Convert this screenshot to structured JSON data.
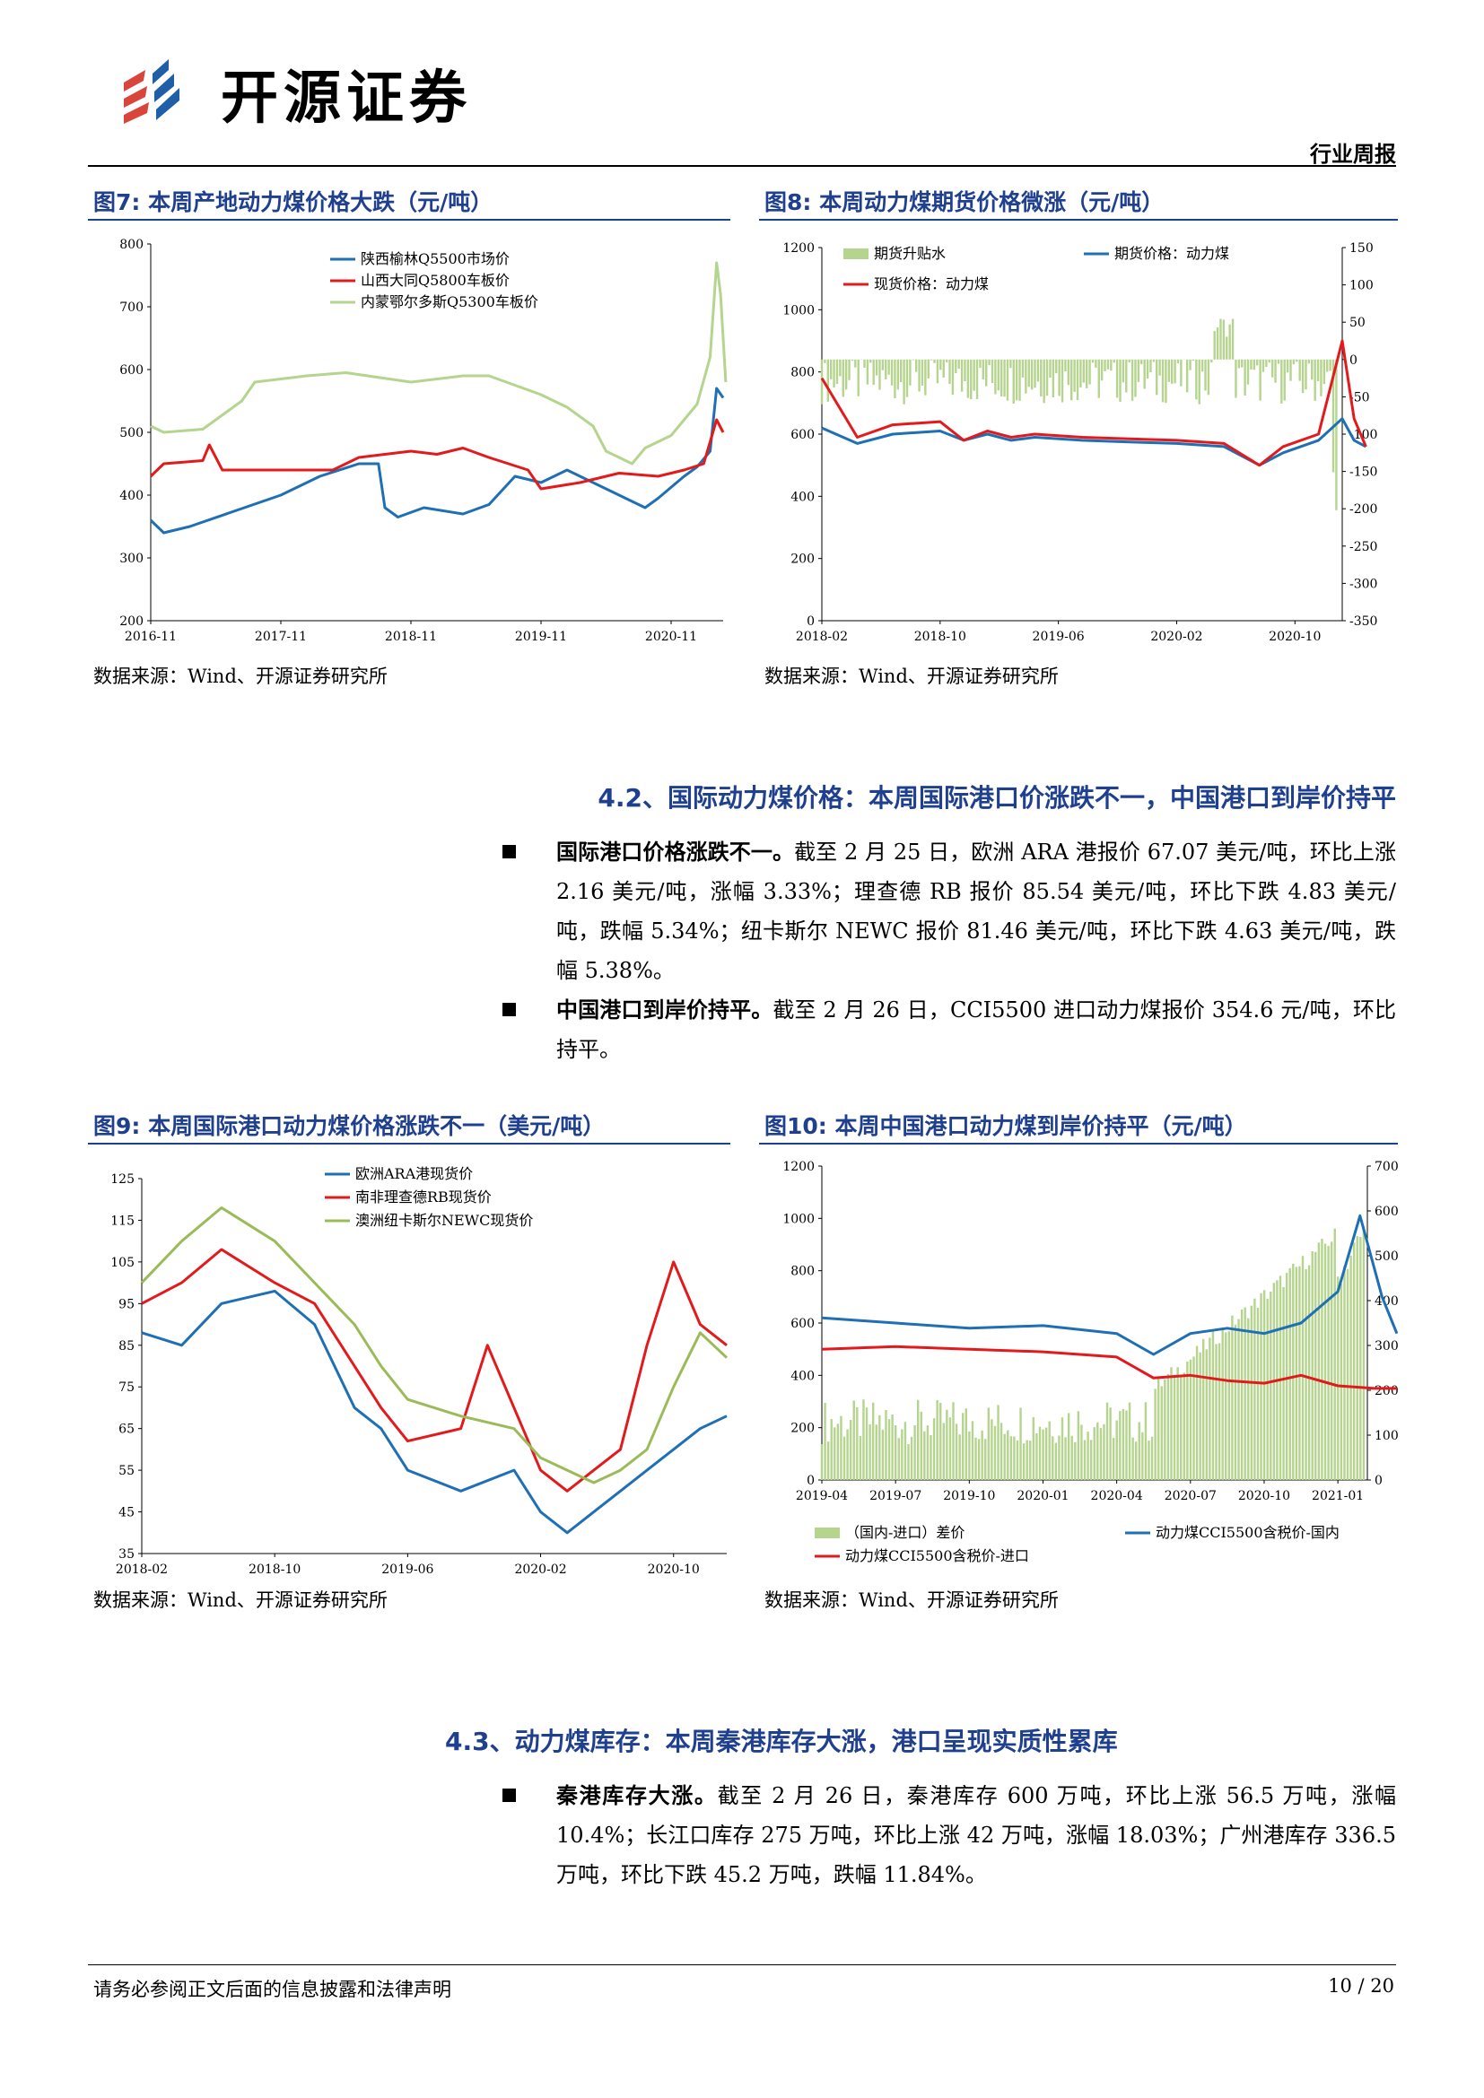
{
  "header": {
    "logo_text": "开源证券",
    "report_type": "行业周报"
  },
  "figures": [
    {
      "id": "fig7",
      "title": "图7: 本周产地动力煤价格大跌（元/吨）",
      "source": "数据来源：Wind、开源证券研究所"
    },
    {
      "id": "fig8",
      "title": "图8: 本周动力煤期货价格微涨（元/吨）",
      "source": "数据来源：Wind、开源证券研究所"
    },
    {
      "id": "fig9",
      "title": "图9: 本周国际港口动力煤价格涨跌不一（美元/吨）",
      "source": "数据来源：Wind、开源证券研究所"
    },
    {
      "id": "fig10",
      "title": "图10: 本周中国港口动力煤到岸价持平（元/吨）",
      "source": "数据来源：Wind、开源证券研究所"
    }
  ],
  "sections": [
    {
      "title": "4.2、国际动力煤价格：本周国际港口价涨跌不一，中国港口到岸价持平",
      "bullets": [
        {
          "bold": "国际港口价格涨跌不一。",
          "text": "截至 2 月 25 日，欧洲 ARA 港报价 67.07 美元/吨，环比上涨 2.16 美元/吨，涨幅 3.33%；理查德 RB 报价 85.54 美元/吨，环比下跌 4.83 美元/吨，跌幅 5.34%；纽卡斯尔 NEWC 报价 81.46 美元/吨，环比下跌 4.63 美元/吨，跌幅 5.38%。"
        },
        {
          "bold": "中国港口到岸价持平。",
          "text": "截至 2 月 26 日，CCI5500 进口动力煤报价 354.6 元/吨，环比持平。"
        }
      ]
    },
    {
      "title": "4.3、动力煤库存：本周秦港库存大涨，港口呈现实质性累库",
      "bullets": [
        {
          "bold": "秦港库存大涨。",
          "text": "截至 2 月 26 日，秦港库存 600 万吨，环比上涨 56.5 万吨，涨幅 10.4%；长江口库存 275 万吨，环比上涨 42 万吨，涨幅 18.03%；广州港库存 336.5 万吨，环比下跌 45.2 万吨，跌幅 11.84%。"
        }
      ]
    }
  ],
  "footer": {
    "disclaimer": "请务必参阅正文后面的信息披露和法律声明",
    "page": "10 / 20"
  },
  "chart_data": [
    {
      "id": "fig7",
      "type": "line",
      "x_ticks": [
        "2016-11",
        "2017-11",
        "2018-11",
        "2019-11",
        "2020-11"
      ],
      "ylim": [
        200,
        800
      ],
      "y_ticks": [
        200,
        300,
        400,
        500,
        600,
        700,
        800
      ],
      "series": [
        {
          "name": "陕西榆林Q5500市场价",
          "color": "#1f6fb5",
          "points": [
            [
              0,
              360
            ],
            [
              0.1,
              340
            ],
            [
              0.3,
              350
            ],
            [
              1,
              400
            ],
            [
              1.3,
              430
            ],
            [
              1.6,
              450
            ],
            [
              1.75,
              450
            ],
            [
              1.8,
              380
            ],
            [
              1.9,
              365
            ],
            [
              2.1,
              380
            ],
            [
              2.4,
              370
            ],
            [
              2.6,
              385
            ],
            [
              2.8,
              430
            ],
            [
              3.0,
              420
            ],
            [
              3.2,
              440
            ],
            [
              3.4,
              420
            ],
            [
              3.6,
              400
            ],
            [
              3.8,
              380
            ],
            [
              3.9,
              395
            ],
            [
              4.1,
              430
            ],
            [
              4.2,
              445
            ],
            [
              4.3,
              470
            ],
            [
              4.35,
              570
            ],
            [
              4.4,
              555
            ]
          ]
        },
        {
          "name": "山西大同Q5800车板价",
          "color": "#e31a1c",
          "points": [
            [
              0,
              430
            ],
            [
              0.1,
              450
            ],
            [
              0.4,
              455
            ],
            [
              0.45,
              480
            ],
            [
              0.55,
              440
            ],
            [
              1.4,
              440
            ],
            [
              1.6,
              460
            ],
            [
              2.0,
              470
            ],
            [
              2.2,
              465
            ],
            [
              2.4,
              475
            ],
            [
              2.6,
              460
            ],
            [
              2.9,
              440
            ],
            [
              3.0,
              410
            ],
            [
              3.3,
              420
            ],
            [
              3.6,
              435
            ],
            [
              3.9,
              430
            ],
            [
              4.1,
              440
            ],
            [
              4.25,
              450
            ],
            [
              4.35,
              520
            ],
            [
              4.4,
              500
            ]
          ]
        },
        {
          "name": "内蒙鄂尔多斯Q5300车板价",
          "color": "#b5d48e",
          "points": [
            [
              0,
              510
            ],
            [
              0.1,
              500
            ],
            [
              0.4,
              505
            ],
            [
              0.7,
              550
            ],
            [
              0.8,
              580
            ],
            [
              1.2,
              590
            ],
            [
              1.5,
              595
            ],
            [
              2.0,
              580
            ],
            [
              2.4,
              590
            ],
            [
              2.6,
              590
            ],
            [
              2.8,
              575
            ],
            [
              3.0,
              560
            ],
            [
              3.2,
              540
            ],
            [
              3.4,
              510
            ],
            [
              3.5,
              470
            ],
            [
              3.6,
              460
            ],
            [
              3.7,
              450
            ],
            [
              3.8,
              475
            ],
            [
              4.0,
              495
            ],
            [
              4.2,
              545
            ],
            [
              4.3,
              620
            ],
            [
              4.35,
              770
            ],
            [
              4.38,
              720
            ],
            [
              4.42,
              580
            ]
          ]
        }
      ]
    },
    {
      "id": "fig8",
      "type": "line",
      "x_ticks": [
        "2018-02",
        "2018-10",
        "2019-06",
        "2020-02",
        "2020-10"
      ],
      "ylim_left": [
        0,
        1200
      ],
      "y_ticks_left": [
        0,
        200,
        400,
        600,
        800,
        1000,
        1200
      ],
      "ylim_right": [
        -350,
        150
      ],
      "y_ticks_right": [
        150,
        100,
        50,
        0,
        -50,
        -100,
        -150,
        -200,
        -250,
        -300,
        -350
      ],
      "series": [
        {
          "name": "期货升贴水",
          "color": "#b5d48e",
          "kind": "bar",
          "axis": "right"
        },
        {
          "name": "期货价格：动力煤",
          "color": "#1f6fb5",
          "axis": "left",
          "points": [
            [
              0,
              620
            ],
            [
              0.3,
              570
            ],
            [
              0.6,
              600
            ],
            [
              1.0,
              610
            ],
            [
              1.2,
              580
            ],
            [
              1.4,
              600
            ],
            [
              1.6,
              580
            ],
            [
              1.8,
              590
            ],
            [
              2.2,
              580
            ],
            [
              2.6,
              575
            ],
            [
              3.0,
              570
            ],
            [
              3.4,
              560
            ],
            [
              3.7,
              500
            ],
            [
              3.9,
              540
            ],
            [
              4.2,
              580
            ],
            [
              4.4,
              650
            ],
            [
              4.5,
              580
            ],
            [
              4.6,
              560
            ]
          ]
        },
        {
          "name": "现货价格：动力煤",
          "color": "#e31a1c",
          "axis": "left",
          "points": [
            [
              0,
              780
            ],
            [
              0.3,
              590
            ],
            [
              0.6,
              630
            ],
            [
              1.0,
              640
            ],
            [
              1.2,
              580
            ],
            [
              1.4,
              610
            ],
            [
              1.6,
              590
            ],
            [
              1.8,
              600
            ],
            [
              2.2,
              590
            ],
            [
              2.6,
              585
            ],
            [
              3.0,
              580
            ],
            [
              3.4,
              570
            ],
            [
              3.7,
              500
            ],
            [
              3.9,
              560
            ],
            [
              4.2,
              600
            ],
            [
              4.4,
              900
            ],
            [
              4.5,
              650
            ],
            [
              4.6,
              560
            ]
          ]
        }
      ]
    },
    {
      "id": "fig9",
      "type": "line",
      "x_ticks": [
        "2018-02",
        "2018-10",
        "2019-06",
        "2020-02",
        "2020-10"
      ],
      "ylim": [
        35,
        125
      ],
      "y_ticks": [
        35,
        45,
        55,
        65,
        75,
        85,
        95,
        105,
        115,
        125
      ],
      "series": [
        {
          "name": "欧洲ARA港现货价",
          "color": "#1f6fb5",
          "points": [
            [
              0,
              88
            ],
            [
              0.3,
              85
            ],
            [
              0.6,
              95
            ],
            [
              1.0,
              98
            ],
            [
              1.3,
              90
            ],
            [
              1.6,
              70
            ],
            [
              1.8,
              65
            ],
            [
              2.0,
              55
            ],
            [
              2.4,
              50
            ],
            [
              2.8,
              55
            ],
            [
              3.0,
              45
            ],
            [
              3.2,
              40
            ],
            [
              3.4,
              45
            ],
            [
              3.6,
              50
            ],
            [
              3.8,
              55
            ],
            [
              4.0,
              60
            ],
            [
              4.2,
              65
            ],
            [
              4.4,
              68
            ]
          ]
        },
        {
          "name": "南非理查德RB现货价",
          "color": "#e31a1c",
          "points": [
            [
              0,
              95
            ],
            [
              0.3,
              100
            ],
            [
              0.6,
              108
            ],
            [
              1.0,
              100
            ],
            [
              1.3,
              95
            ],
            [
              1.6,
              80
            ],
            [
              1.8,
              70
            ],
            [
              2.0,
              62
            ],
            [
              2.4,
              65
            ],
            [
              2.6,
              85
            ],
            [
              2.8,
              70
            ],
            [
              3.0,
              55
            ],
            [
              3.2,
              50
            ],
            [
              3.4,
              55
            ],
            [
              3.6,
              60
            ],
            [
              3.8,
              85
            ],
            [
              4.0,
              105
            ],
            [
              4.2,
              90
            ],
            [
              4.4,
              85
            ]
          ]
        },
        {
          "name": "澳洲纽卡斯尔NEWC现货价",
          "color": "#9bbb59",
          "points": [
            [
              0,
              100
            ],
            [
              0.3,
              110
            ],
            [
              0.6,
              118
            ],
            [
              1.0,
              110
            ],
            [
              1.3,
              100
            ],
            [
              1.6,
              90
            ],
            [
              1.8,
              80
            ],
            [
              2.0,
              72
            ],
            [
              2.4,
              68
            ],
            [
              2.8,
              65
            ],
            [
              3.0,
              58
            ],
            [
              3.2,
              55
            ],
            [
              3.4,
              52
            ],
            [
              3.6,
              55
            ],
            [
              3.8,
              60
            ],
            [
              4.0,
              75
            ],
            [
              4.2,
              88
            ],
            [
              4.4,
              82
            ]
          ]
        }
      ]
    },
    {
      "id": "fig10",
      "type": "line",
      "x_ticks": [
        "2019-04",
        "2019-07",
        "2019-10",
        "2020-01",
        "2020-04",
        "2020-07",
        "2020-10",
        "2021-01"
      ],
      "ylim_left": [
        0,
        1200
      ],
      "y_ticks_left": [
        0,
        200,
        400,
        600,
        800,
        1000,
        1200
      ],
      "ylim_right": [
        0,
        700
      ],
      "y_ticks_right": [
        0,
        100,
        200,
        300,
        400,
        500,
        600,
        700
      ],
      "series": [
        {
          "name": "（国内-进口）差价",
          "color": "#b5d48e",
          "kind": "bar",
          "axis": "right"
        },
        {
          "name": "动力煤CCI5500含税价-国内",
          "color": "#1f6fb5",
          "axis": "left",
          "points": [
            [
              0,
              620
            ],
            [
              1,
              600
            ],
            [
              2,
              580
            ],
            [
              3,
              590
            ],
            [
              4,
              560
            ],
            [
              4.5,
              480
            ],
            [
              5,
              560
            ],
            [
              5.5,
              580
            ],
            [
              6,
              560
            ],
            [
              6.5,
              600
            ],
            [
              7,
              720
            ],
            [
              7.3,
              1010
            ],
            [
              7.6,
              700
            ],
            [
              7.8,
              560
            ]
          ]
        },
        {
          "name": "动力煤CCI5500含税价-进口",
          "color": "#e31a1c",
          "axis": "left",
          "points": [
            [
              0,
              500
            ],
            [
              1,
              510
            ],
            [
              2,
              500
            ],
            [
              3,
              490
            ],
            [
              4,
              470
            ],
            [
              4.5,
              390
            ],
            [
              5,
              400
            ],
            [
              5.5,
              380
            ],
            [
              6,
              370
            ],
            [
              6.5,
              400
            ],
            [
              7,
              360
            ],
            [
              7.5,
              350
            ],
            [
              7.8,
              350
            ]
          ]
        }
      ]
    }
  ]
}
